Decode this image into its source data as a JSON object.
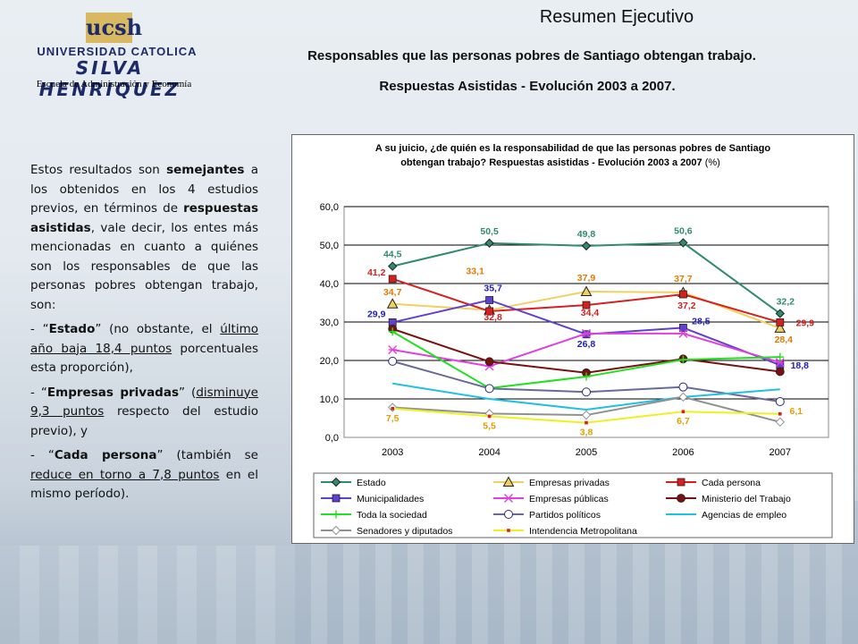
{
  "logo": {
    "mark": "ucsh",
    "university": "UNIVERSIDAD CATOLICA",
    "name": "SILVA HENRIQUEZ",
    "school": "Escuela de Administración y Economía"
  },
  "header": {
    "title": "Resumen Ejecutivo",
    "subtitle_line1": "Responsables que las personas pobres de Santiago obtengan trabajo.",
    "subtitle_line2": "Respuestas Asistidas - Evolución 2003 a 2007."
  },
  "text": {
    "p1_a": "Estos resultados son ",
    "p1_b": "semejantes",
    "p1_c": " a los obtenidos en los 4 estudios previos, en términos de ",
    "p1_d": "respuestas asistidas",
    "p1_e": ", vale decir, los entes más mencionadas en cuanto a quiénes son los responsables de que las personas pobres obtengan trabajo, son:",
    "b1_a": "- “",
    "b1_b": "Estado",
    "b1_c": "” (no obstante, el ",
    "b1_d": "último año baja 18,4 puntos",
    "b1_e": " porcentuales esta proporción),",
    "b2_a": "- “",
    "b2_b": "Empresas privadas",
    "b2_c": "” (",
    "b2_d": "disminuye 9,3 puntos",
    "b2_e": " respecto del estudio previo), y",
    "b3_a": "- “",
    "b3_b": "Cada persona",
    "b3_c": "” (también se ",
    "b3_d": "reduce  en torno a 7,8 puntos",
    "b3_e": " en el mismo período)."
  },
  "chart_data": {
    "type": "line",
    "title_line1": "A su juicio, ¿de quién es la responsabilidad de que las personas pobres  de Santiago",
    "title_line2": "obtengan trabajo? Respuestas asistidas - Evolución 2003 a 2007 ",
    "title_unit": "(%)",
    "x": [
      "2003",
      "2004",
      "2005",
      "2006",
      "2007"
    ],
    "ylim": [
      0,
      60
    ],
    "yticks": [
      "0,0",
      "10,0",
      "20,0",
      "30,0",
      "40,0",
      "50,0",
      "60,0"
    ],
    "grid": true,
    "legend_position": "bottom",
    "series": [
      {
        "name": "Estado",
        "color": "#2e8b6e",
        "marker": "diamond",
        "values": [
          44.5,
          50.5,
          49.8,
          50.6,
          32.2
        ],
        "labels": [
          "44,5",
          "50,5",
          "49,8",
          "50,6",
          "32,2"
        ]
      },
      {
        "name": "Empresas privadas",
        "color": "#f0d060",
        "marker": "triangle",
        "values": [
          34.7,
          33.1,
          37.9,
          37.7,
          28.4
        ],
        "labels": [
          "34,7",
          "33,1",
          "37,9",
          "37,7",
          "28,4"
        ]
      },
      {
        "name": "Cada persona",
        "color": "#d62020",
        "marker": "square",
        "values": [
          41.2,
          32.8,
          34.4,
          37.2,
          29.9
        ],
        "labels": [
          "41,2",
          "32,8",
          "34,4",
          "37,2",
          "29,9"
        ]
      },
      {
        "name": "Municipalidades",
        "color": "#6040d0",
        "marker": "square",
        "values": [
          29.9,
          35.7,
          26.8,
          28.5,
          18.8
        ],
        "labels": [
          "29,9",
          "35,7",
          "26,8",
          "28,5",
          "18,8"
        ]
      },
      {
        "name": "Empresas públicas",
        "color": "#e040e0",
        "marker": "star",
        "values": [
          22.8,
          18.5,
          27.0,
          27.0,
          19.5
        ]
      },
      {
        "name": "Ministerio del Trabajo",
        "color": "#7a1010",
        "marker": "circle",
        "values": [
          28.2,
          19.7,
          16.8,
          20.4,
          17.1
        ]
      },
      {
        "name": "Toda la sociedad",
        "color": "#20e020",
        "marker": "plus",
        "values": [
          27.5,
          12.8,
          15.8,
          20.2,
          20.9
        ]
      },
      {
        "name": "Partidos políticos",
        "color": "#6a6a9a",
        "marker": "hollow-circle",
        "values": [
          19.8,
          12.7,
          11.8,
          13.1,
          9.3
        ]
      },
      {
        "name": "Agencias de empleo",
        "color": "#20c0e0",
        "marker": "none",
        "values": [
          14.0,
          10.0,
          7.2,
          10.5,
          12.5
        ]
      },
      {
        "name": "Senadores y diputados",
        "color": "#909090",
        "marker": "hollow-diamond",
        "values": [
          7.8,
          6.2,
          5.8,
          10.5,
          4.0
        ]
      },
      {
        "name": "Intendencia Metropolitana",
        "color": "#f0f020",
        "marker": "small-square",
        "values": [
          7.5,
          5.5,
          3.8,
          6.7,
          6.1
        ],
        "labels": [
          "7,5",
          "5,5",
          "3,8",
          "6,7",
          "6,1"
        ]
      }
    ]
  }
}
